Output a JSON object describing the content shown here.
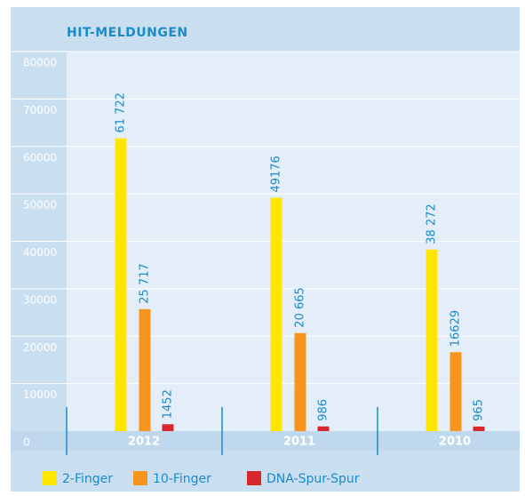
{
  "chart_data": {
    "type": "bar",
    "title": "HIT-MELDUNGEN",
    "categories": [
      "2012",
      "2011",
      "2010"
    ],
    "series": [
      {
        "name": "2-Finger",
        "color": "#ffe600",
        "values": [
          61722,
          49176,
          38272
        ],
        "value_labels": [
          "61 722",
          "49176",
          "38 272"
        ]
      },
      {
        "name": "10-Finger",
        "color": "#f7941d",
        "values": [
          25717,
          20665,
          16629
        ],
        "value_labels": [
          "25 717",
          "20 665",
          "16629"
        ]
      },
      {
        "name": "DNA-Spur-Spur",
        "color": "#d7262d",
        "values": [
          1452,
          986,
          965
        ]
      }
    ],
    "ylim": [
      0,
      80000
    ],
    "yticks": [
      0,
      10000,
      20000,
      30000,
      40000,
      50000,
      60000,
      70000,
      80000
    ],
    "grid": true
  }
}
